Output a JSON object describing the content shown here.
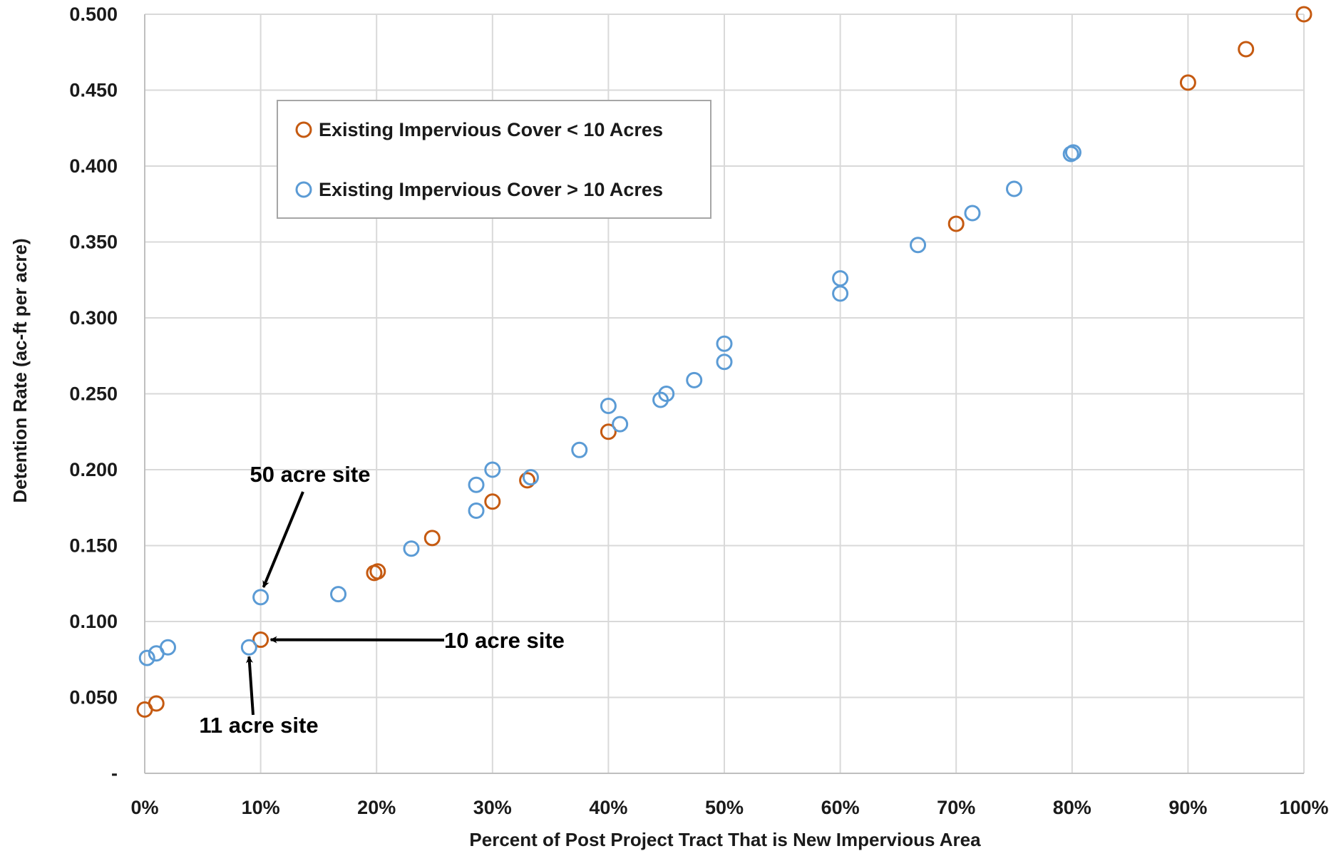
{
  "chart_data": {
    "type": "scatter",
    "xlabel": "Percent of Post Project Tract That is New Impervious Area",
    "ylabel": "Detention Rate (ac-ft per acre)",
    "xlim": [
      0,
      100
    ],
    "ylim": [
      0,
      0.5
    ],
    "x_ticks": [
      0,
      10,
      20,
      30,
      40,
      50,
      60,
      70,
      80,
      90,
      100
    ],
    "x_tick_labels": [
      "0%",
      "10%",
      "20%",
      "30%",
      "40%",
      "50%",
      "60%",
      "70%",
      "80%",
      "90%",
      "100%"
    ],
    "y_ticks": [
      0,
      0.05,
      0.1,
      0.15,
      0.2,
      0.25,
      0.3,
      0.35,
      0.4,
      0.45,
      0.5
    ],
    "y_tick_labels": [
      "-",
      "0.050",
      "0.100",
      "0.150",
      "0.200",
      "0.250",
      "0.300",
      "0.350",
      "0.400",
      "0.450",
      "0.500"
    ],
    "grid": true,
    "legend_position": "upper-left",
    "series": [
      {
        "name": "Existing Impervious Cover < 10 Acres",
        "color": "#C55A11",
        "points": [
          [
            0,
            0.042
          ],
          [
            1,
            0.046
          ],
          [
            10,
            0.088
          ],
          [
            19.8,
            0.132
          ],
          [
            20.1,
            0.133
          ],
          [
            24.8,
            0.155
          ],
          [
            30,
            0.179
          ],
          [
            33,
            0.193
          ],
          [
            40,
            0.225
          ],
          [
            70,
            0.362
          ],
          [
            90,
            0.455
          ],
          [
            95,
            0.477
          ],
          [
            100,
            0.5
          ]
        ]
      },
      {
        "name": "Existing Impervious Cover > 10 Acres",
        "color": "#5B9BD5",
        "points": [
          [
            0.2,
            0.076
          ],
          [
            1,
            0.079
          ],
          [
            2,
            0.083
          ],
          [
            9,
            0.083
          ],
          [
            10,
            0.116
          ],
          [
            16.7,
            0.118
          ],
          [
            23,
            0.148
          ],
          [
            28.6,
            0.173
          ],
          [
            28.6,
            0.19
          ],
          [
            30,
            0.2
          ],
          [
            33.3,
            0.195
          ],
          [
            37.5,
            0.213
          ],
          [
            40,
            0.242
          ],
          [
            41,
            0.23
          ],
          [
            44.5,
            0.246
          ],
          [
            45,
            0.25
          ],
          [
            47.4,
            0.259
          ],
          [
            50,
            0.271
          ],
          [
            50,
            0.283
          ],
          [
            60,
            0.316
          ],
          [
            60,
            0.326
          ],
          [
            66.7,
            0.348
          ],
          [
            71.4,
            0.369
          ],
          [
            75,
            0.385
          ],
          [
            79.9,
            0.408
          ],
          [
            80.1,
            0.409
          ]
        ]
      }
    ],
    "annotations": [
      {
        "text": "50 acre site",
        "target": [
          10,
          0.116
        ]
      },
      {
        "text": "10 acre site",
        "target": [
          10,
          0.088
        ]
      },
      {
        "text": "11 acre site",
        "target": [
          9,
          0.083
        ]
      }
    ]
  }
}
